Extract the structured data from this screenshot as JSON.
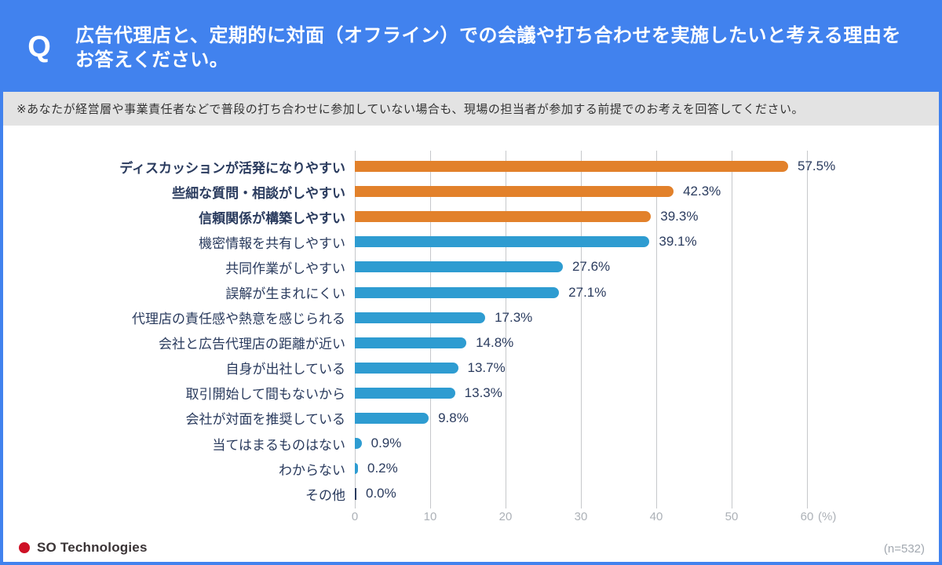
{
  "header": {
    "q_mark": "Q",
    "title_line1": "広告代理店と、定期的に対面（オフライン）での会議や打ち合わせを実施したいと考える理由を",
    "title_line2": "お答えください。"
  },
  "note": {
    "text": "※あなたが経営層や事業責任者などで普段の打ち合わせに参加していない場合も、現場の担当者が参加する前提でのお考えを回答してください。"
  },
  "chart_data": {
    "type": "bar",
    "orientation": "horizontal",
    "categories": [
      "ディスカッションが活発になりやすい",
      "些細な質問・相談がしやすい",
      "信頼関係が構築しやすい",
      "機密情報を共有しやすい",
      "共同作業がしやすい",
      "誤解が生まれにくい",
      "代理店の責任感や熱意を感じられる",
      "会社と広告代理店の距離が近い",
      "自身が出社している",
      "取引開始して間もないから",
      "会社が対面を推奨している",
      "当てはまるものはない",
      "わからない",
      "その他"
    ],
    "values": [
      57.5,
      42.3,
      39.3,
      39.1,
      27.6,
      27.1,
      17.3,
      14.8,
      13.7,
      13.3,
      9.8,
      0.9,
      0.2,
      0.0
    ],
    "value_labels": [
      "57.5%",
      "42.3%",
      "39.3%",
      "39.1%",
      "27.6%",
      "27.1%",
      "17.3%",
      "14.8%",
      "13.7%",
      "13.3%",
      "9.8%",
      "0.9%",
      "0.2%",
      "0.0%"
    ],
    "highlight_top": 3,
    "x_ticks": [
      0,
      10,
      20,
      30,
      40,
      50,
      60
    ],
    "x_axis_unit": "(%)",
    "xlim": [
      0,
      60
    ],
    "grid": true,
    "colors": {
      "highlight_bar": "#E2812B",
      "normal_bar": "#2E9CD1",
      "zero_stub": "#2A3B5E",
      "label_text": "#2A3B5E",
      "gridline": "#C6C8CB",
      "tick_text": "#ACB1B7"
    }
  },
  "footer": {
    "brand": "SO Technologies",
    "sample_label": "(n=532)"
  },
  "theme_colors": {
    "header_background": "#4182EE",
    "note_background": "#E3E3E3",
    "frame_border": "#4182EE",
    "brand_dot": "#CE1126"
  }
}
